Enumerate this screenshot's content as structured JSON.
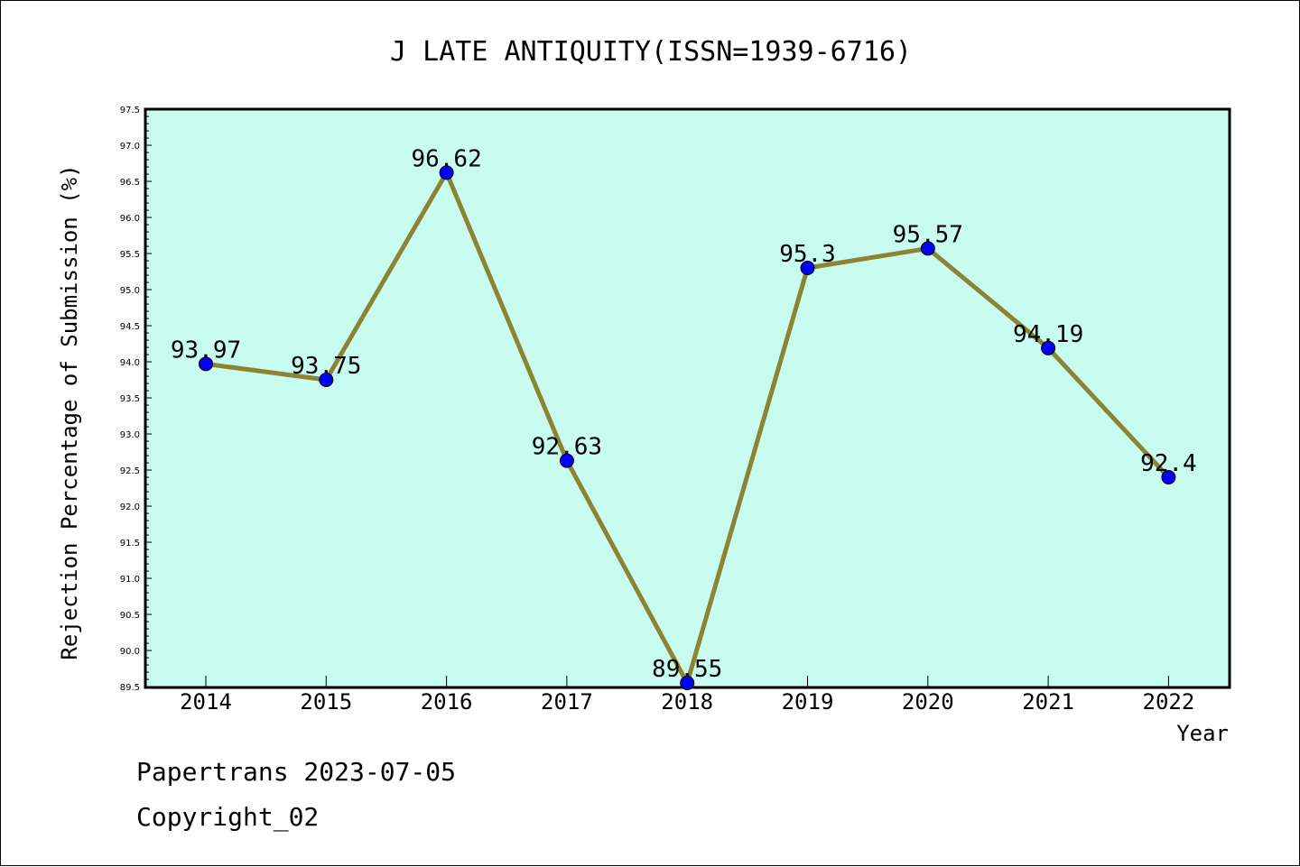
{
  "chart_data": {
    "type": "line",
    "title": "J LATE ANTIQUITY(ISSN=1939-6716)",
    "xlabel": "Year",
    "ylabel": "Rejection Percentage of Submission (%)",
    "categories": [
      "2014",
      "2015",
      "2016",
      "2017",
      "2018",
      "2019",
      "2020",
      "2021",
      "2022"
    ],
    "series": [
      {
        "values": [
          93.97,
          93.75,
          96.62,
          92.63,
          89.55,
          95.3,
          95.57,
          94.19,
          92.4
        ],
        "labels": [
          "93.97",
          "93.75",
          "96.62",
          "92.63",
          "89.55",
          "95.3",
          "95.57",
          "94.19",
          "92.4"
        ]
      }
    ],
    "ylim": [
      89.5,
      97.5
    ],
    "yticks": [
      "89.5",
      "90.0",
      "90.5",
      "91.0",
      "91.5",
      "92.0",
      "92.5",
      "93.0",
      "93.5",
      "94.0",
      "94.5",
      "95.0",
      "95.5",
      "96.0",
      "96.5",
      "97.0",
      "97.5"
    ],
    "grid": false,
    "colors": {
      "plot_background": "#c8fcee",
      "line": "#8c8434",
      "marker": "#0000ff"
    }
  },
  "footer": {
    "line1": "Papertrans 2023-07-05",
    "line2": "Copyright_02"
  }
}
